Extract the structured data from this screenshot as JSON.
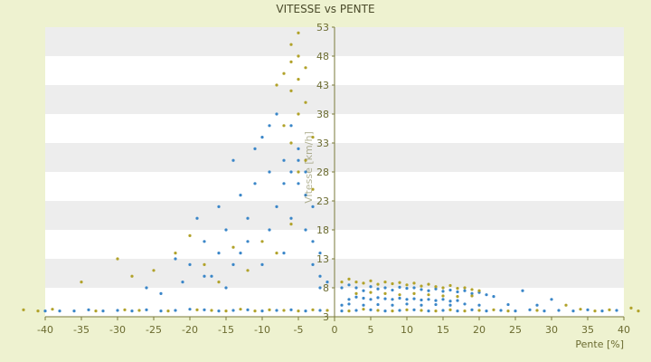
{
  "chart_data": {
    "type": "scatter",
    "title": "VITESSE vs PENTE",
    "xlabel": "Pente [%]",
    "ylabel": "Vitesse [km/h]",
    "xlim": [
      -40,
      40
    ],
    "ylim": [
      3,
      53
    ],
    "x_ticks": [
      -40,
      -35,
      -30,
      -25,
      -20,
      -15,
      -10,
      -5,
      0,
      5,
      10,
      15,
      20,
      25,
      30,
      35,
      40
    ],
    "y_ticks": [
      3,
      8,
      13,
      18,
      23,
      28,
      33,
      38,
      43,
      48,
      53
    ],
    "grid": "horizontal alternating bands",
    "legend": "none",
    "series": [
      {
        "color": "#3a86c8",
        "points": [
          [
            -40,
            4
          ],
          [
            -38,
            4
          ],
          [
            -36,
            4
          ],
          [
            -34,
            4.2
          ],
          [
            -32,
            4
          ],
          [
            -30,
            4.1
          ],
          [
            -28,
            4
          ],
          [
            -26,
            4.2
          ],
          [
            -24,
            4
          ],
          [
            -22,
            4.1
          ],
          [
            -20,
            4.3
          ],
          [
            -18,
            4.2
          ],
          [
            -16,
            4
          ],
          [
            -14,
            4.1
          ],
          [
            -12,
            4.2
          ],
          [
            -10,
            4
          ],
          [
            -8,
            4.1
          ],
          [
            -6,
            4.2
          ],
          [
            -4,
            4
          ],
          [
            -2,
            4.1
          ],
          [
            1,
            4
          ],
          [
            3,
            4.1
          ],
          [
            5,
            4.2
          ],
          [
            7,
            4
          ],
          [
            9,
            4.1
          ],
          [
            11,
            4.2
          ],
          [
            13,
            4
          ],
          [
            15,
            4.1
          ],
          [
            17,
            4
          ],
          [
            19,
            4.2
          ],
          [
            21,
            4
          ],
          [
            23,
            4.1
          ],
          [
            25,
            4
          ],
          [
            27,
            4.2
          ],
          [
            29,
            4
          ],
          [
            31,
            4.1
          ],
          [
            33,
            4
          ],
          [
            35,
            4.2
          ],
          [
            37,
            4
          ],
          [
            39,
            4.1
          ],
          [
            -20,
            12
          ],
          [
            -18,
            16
          ],
          [
            -17,
            10
          ],
          [
            -16,
            22
          ],
          [
            -15,
            8
          ],
          [
            -14,
            30
          ],
          [
            -13,
            14
          ],
          [
            -12,
            20
          ],
          [
            -11,
            26
          ],
          [
            -10,
            34
          ],
          [
            -10,
            12
          ],
          [
            -9,
            18
          ],
          [
            -9,
            28
          ],
          [
            -8,
            38
          ],
          [
            -8,
            22
          ],
          [
            -7,
            30
          ],
          [
            -7,
            14
          ],
          [
            -6,
            36
          ],
          [
            -6,
            20
          ],
          [
            -5,
            26
          ],
          [
            -5,
            32
          ],
          [
            -4,
            18
          ],
          [
            -4,
            24
          ],
          [
            -3,
            12
          ],
          [
            -3,
            16
          ],
          [
            -2,
            10
          ],
          [
            -2,
            8
          ],
          [
            -1,
            9
          ],
          [
            -15,
            18
          ],
          [
            -13,
            24
          ],
          [
            -11,
            32
          ],
          [
            -9,
            36
          ],
          [
            -7,
            26
          ],
          [
            -6,
            28
          ],
          [
            -5,
            30
          ],
          [
            -4,
            28
          ],
          [
            -3,
            22
          ],
          [
            -2,
            14
          ],
          [
            -12,
            16
          ],
          [
            -14,
            12
          ],
          [
            -16,
            14
          ],
          [
            -18,
            10
          ],
          [
            -19,
            20
          ],
          [
            -21,
            9
          ],
          [
            -22,
            13
          ],
          [
            -24,
            7
          ],
          [
            -26,
            8
          ],
          [
            1,
            8
          ],
          [
            2,
            8.5
          ],
          [
            3,
            8
          ],
          [
            4,
            7.5
          ],
          [
            5,
            8.2
          ],
          [
            6,
            7.8
          ],
          [
            7,
            8
          ],
          [
            8,
            7.6
          ],
          [
            9,
            8.1
          ],
          [
            10,
            7.9
          ],
          [
            11,
            8
          ],
          [
            12,
            7.7
          ],
          [
            13,
            7.5
          ],
          [
            14,
            7.8
          ],
          [
            15,
            7.4
          ],
          [
            16,
            7.6
          ],
          [
            17,
            7.3
          ],
          [
            18,
            7.5
          ],
          [
            19,
            7
          ],
          [
            20,
            7.2
          ],
          [
            21,
            6.8
          ],
          [
            22,
            6.5
          ],
          [
            2,
            6
          ],
          [
            3,
            6.4
          ],
          [
            4,
            6.2
          ],
          [
            5,
            6
          ],
          [
            6,
            6.3
          ],
          [
            7,
            6.1
          ],
          [
            8,
            6
          ],
          [
            9,
            6.2
          ],
          [
            10,
            6
          ],
          [
            11,
            6.1
          ],
          [
            12,
            5.9
          ],
          [
            13,
            6
          ],
          [
            14,
            5.8
          ],
          [
            15,
            6
          ],
          [
            16,
            5.7
          ],
          [
            17,
            5.8
          ],
          [
            1,
            5
          ],
          [
            2,
            5.2
          ],
          [
            4,
            5
          ],
          [
            6,
            5.1
          ],
          [
            8,
            5
          ],
          [
            10,
            5.2
          ],
          [
            12,
            5
          ],
          [
            14,
            5.1
          ],
          [
            16,
            5
          ],
          [
            18,
            5.2
          ],
          [
            20,
            5
          ],
          [
            24,
            5.1
          ],
          [
            26,
            7.5
          ],
          [
            28,
            5
          ],
          [
            30,
            6
          ]
        ]
      },
      {
        "color": "#b1a22a",
        "points": [
          [
            -43,
            4.2
          ],
          [
            -41,
            4
          ],
          [
            -39,
            4.3
          ],
          [
            -33,
            4
          ],
          [
            -29,
            4.2
          ],
          [
            -27,
            4.1
          ],
          [
            -23,
            4
          ],
          [
            -19,
            4.2
          ],
          [
            -17,
            4.1
          ],
          [
            -15,
            4
          ],
          [
            -13,
            4.3
          ],
          [
            -11,
            4
          ],
          [
            -9,
            4.2
          ],
          [
            -7,
            4.1
          ],
          [
            -5,
            4
          ],
          [
            -3,
            4.2
          ],
          [
            -1,
            4.1
          ],
          [
            2,
            4
          ],
          [
            4,
            4.3
          ],
          [
            6,
            4.1
          ],
          [
            8,
            4
          ],
          [
            10,
            4.2
          ],
          [
            12,
            4.1
          ],
          [
            14,
            4
          ],
          [
            16,
            4.2
          ],
          [
            18,
            4
          ],
          [
            20,
            4.1
          ],
          [
            22,
            4.2
          ],
          [
            24,
            4
          ],
          [
            28,
            4.1
          ],
          [
            32,
            5
          ],
          [
            34,
            4.3
          ],
          [
            36,
            4
          ],
          [
            38,
            4.2
          ],
          [
            41,
            4.5
          ],
          [
            42,
            4
          ],
          [
            -35,
            9
          ],
          [
            -30,
            13
          ],
          [
            -28,
            10
          ],
          [
            -25,
            11
          ],
          [
            -22,
            14
          ],
          [
            -20,
            17
          ],
          [
            -18,
            12
          ],
          [
            -16,
            9
          ],
          [
            -14,
            15
          ],
          [
            -12,
            11
          ],
          [
            -10,
            16
          ],
          [
            -8,
            14
          ],
          [
            -6,
            19
          ],
          [
            -5,
            52
          ],
          [
            -5,
            48
          ],
          [
            -6,
            50
          ],
          [
            -4,
            46
          ],
          [
            -5,
            44
          ],
          [
            -6,
            42
          ],
          [
            -4,
            40
          ],
          [
            -5,
            38
          ],
          [
            -7,
            36
          ],
          [
            -3,
            34
          ],
          [
            -4,
            30
          ],
          [
            -6,
            33
          ],
          [
            -5,
            28
          ],
          [
            -3,
            25
          ],
          [
            -7,
            45
          ],
          [
            -8,
            43
          ],
          [
            -6,
            47
          ],
          [
            1,
            9
          ],
          [
            2,
            9.5
          ],
          [
            3,
            9
          ],
          [
            4,
            8.8
          ],
          [
            5,
            9.2
          ],
          [
            6,
            8.6
          ],
          [
            7,
            9
          ],
          [
            8,
            8.7
          ],
          [
            9,
            8.9
          ],
          [
            10,
            8.5
          ],
          [
            11,
            8.8
          ],
          [
            12,
            8.3
          ],
          [
            13,
            8.6
          ],
          [
            14,
            8.2
          ],
          [
            15,
            8
          ],
          [
            16,
            8.4
          ],
          [
            17,
            7.9
          ],
          [
            18,
            8
          ],
          [
            19,
            7.7
          ],
          [
            20,
            7.5
          ],
          [
            3,
            7
          ],
          [
            5,
            7.2
          ],
          [
            7,
            7
          ],
          [
            9,
            6.8
          ],
          [
            11,
            7
          ],
          [
            13,
            6.8
          ],
          [
            15,
            6.6
          ],
          [
            17,
            6.5
          ],
          [
            19,
            6.6
          ]
        ]
      }
    ]
  }
}
